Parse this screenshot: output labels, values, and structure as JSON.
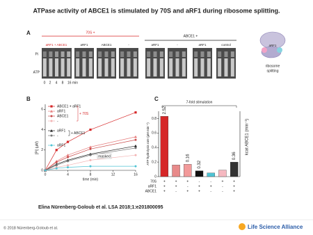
{
  "title": "ATPase activity of ABCE1 is stimulated by 70S and aRF1 during ribosome splitting.",
  "panel_a": {
    "letter": "A",
    "groups": [
      "70S +",
      "ABCE1 +"
    ],
    "lanes": [
      "aRF1 + ABCE1",
      "aRF1",
      "ABCE1",
      "-",
      "aRF1",
      "-",
      "aRF1",
      "control"
    ],
    "row_labels": [
      "Pi",
      "ATP"
    ],
    "times": [
      "0",
      "2",
      "4",
      "8",
      "16 min"
    ],
    "diagram_label": "aRF1",
    "diagram_caption": [
      "ribosome",
      "splitting"
    ]
  },
  "chart_data": [
    {
      "type": "line",
      "panel": "B",
      "xlabel": "time (min)",
      "ylabel": "[Pi] (µM)",
      "x": [
        0,
        2,
        4,
        8,
        16
      ],
      "xlim": [
        0,
        16
      ],
      "xticks": [
        0,
        4,
        8,
        12,
        16
      ],
      "ylim": [
        0,
        6.5
      ],
      "yticks": [
        0,
        2,
        4,
        6
      ],
      "series": [
        {
          "name": "ABCE1 + aRF1",
          "color": "#d62728",
          "marker": "square",
          "values": [
            0,
            2.0,
            2.8,
            4.0,
            5.7
          ]
        },
        {
          "name": "aRF1",
          "color": "#e67c7c",
          "marker": "triangle",
          "values": [
            0,
            0.9,
            1.5,
            2.3,
            3.3
          ]
        },
        {
          "name": "ABCE1",
          "color": "#c94a4a",
          "marker": "circle",
          "values": [
            0,
            0.8,
            1.3,
            2.1,
            3.0
          ]
        },
        {
          "name": "-",
          "color": "#f2b3b3",
          "marker": "circle",
          "values": [
            0,
            0.3,
            0.5,
            1.0,
            1.5
          ]
        },
        {
          "name": "aRF1",
          "color": "#222222",
          "marker": "triangle",
          "values": [
            0,
            0.6,
            1.0,
            1.6,
            2.4
          ]
        },
        {
          "name": "-",
          "color": "#777777",
          "marker": "circle",
          "values": [
            0,
            0.5,
            0.9,
            1.5,
            2.2
          ]
        },
        {
          "name": "aRF1",
          "color": "#4fc3d4",
          "marker": "circle",
          "values": [
            0,
            0.2,
            0.3,
            0.4,
            0.4
          ]
        }
      ],
      "groups": [
        {
          "label": "+ 70S",
          "color": "#d62728"
        },
        {
          "label": "+ ABCE1",
          "color": "#222222"
        }
      ],
      "annotation": "masked"
    },
    {
      "type": "bar",
      "panel": "C",
      "title": "7-fold stimulation",
      "ylabel": "ATP hydrolysis rate (µM min⁻¹)",
      "y2label": "kcat ABCE1 (min⁻¹)",
      "values": [
        0.83,
        0.16,
        0.17,
        0.08,
        0.05,
        0.09,
        0.2
      ],
      "colors": [
        "#d62728",
        "#e88a8a",
        "#f29a9a",
        "#111111",
        "#4fc3d4",
        "#f5b8c0",
        "#333333"
      ],
      "kcat_labels": [
        "2.52",
        null,
        "0.16",
        "0.32",
        null,
        null,
        "0.36"
      ],
      "ylim": [
        0,
        0.9
      ],
      "yticks": [
        0,
        0.2,
        0.4,
        0.6,
        0.8
      ],
      "table": [
        {
          "label": "70S",
          "marks": [
            "+",
            "+",
            "+",
            "-",
            "-",
            "+",
            "+"
          ]
        },
        {
          "label": "aRF1",
          "marks": [
            "+",
            "+",
            "-",
            "+",
            "+",
            "-",
            "+"
          ]
        },
        {
          "label": "ABCE1",
          "marks": [
            "+",
            "-",
            "+",
            "+",
            "-",
            "-",
            "+"
          ]
        }
      ]
    }
  ],
  "citation": "Elina Nürenberg-Goloub et al. LSA 2018;1:e201800095",
  "copyright": "© 2018 Nürenberg-Goloub et al.",
  "logo": "Life Science Alliance"
}
